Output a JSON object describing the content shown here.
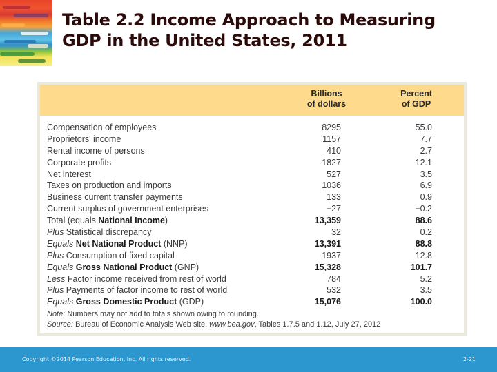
{
  "slide": {
    "title_line1": "Table 2.2  Income Approach to Measuring",
    "title_line2": "GDP in the United States, 2011"
  },
  "table": {
    "header": {
      "col1_line1": "Billions",
      "col1_line2": "of dollars",
      "col2_line1": "Percent",
      "col2_line2": "of GDP"
    },
    "rows": [
      {
        "prefix": "",
        "bold": "",
        "text": "Compensation of employees",
        "suffix": "",
        "billions": "8295",
        "percent": "55.0",
        "is_total": false
      },
      {
        "prefix": "",
        "bold": "",
        "text": "Proprietors' income",
        "suffix": "",
        "billions": "1157",
        "percent": "7.7",
        "is_total": false
      },
      {
        "prefix": "",
        "bold": "",
        "text": "Rental income of persons",
        "suffix": "",
        "billions": "410",
        "percent": "2.7",
        "is_total": false
      },
      {
        "prefix": "",
        "bold": "",
        "text": "Corporate profits",
        "suffix": "",
        "billions": "1827",
        "percent": "12.1",
        "is_total": false
      },
      {
        "prefix": "",
        "bold": "",
        "text": "Net interest",
        "suffix": "",
        "billions": "527",
        "percent": "3.5",
        "is_total": false
      },
      {
        "prefix": "",
        "bold": "",
        "text": "Taxes on production and imports",
        "suffix": "",
        "billions": "1036",
        "percent": "6.9",
        "is_total": false
      },
      {
        "prefix": "",
        "bold": "",
        "text": "Business current transfer payments",
        "suffix": "",
        "billions": "133",
        "percent": "0.9",
        "is_total": false
      },
      {
        "prefix": "",
        "bold": "",
        "text": "Current surplus of government enterprises",
        "suffix": "",
        "billions": "−27",
        "percent": "−0.2",
        "is_total": false
      },
      {
        "prefix": "",
        "text": "Total (equals ",
        "bold": "National Income",
        "suffix": ")",
        "billions": "13,359",
        "percent": "88.6",
        "is_total": true
      },
      {
        "prefix": "Plus",
        "text": " Statistical discrepancy",
        "bold": "",
        "suffix": "",
        "billions": "32",
        "percent": "0.2",
        "is_total": false
      },
      {
        "prefix": "Equals",
        "text": " ",
        "bold": "Net National Product",
        "suffix": " (NNP)",
        "billions": "13,391",
        "percent": "88.8",
        "is_total": true
      },
      {
        "prefix": "Plus",
        "text": " Consumption of fixed capital",
        "bold": "",
        "suffix": "",
        "billions": "1937",
        "percent": "12.8",
        "is_total": false
      },
      {
        "prefix": "Equals",
        "text": " ",
        "bold": "Gross National Product",
        "suffix": " (GNP)",
        "billions": "15,328",
        "percent": "101.7",
        "is_total": true
      },
      {
        "prefix": "Less",
        "text": " Factor income received from rest of world",
        "bold": "",
        "suffix": "",
        "billions": "784",
        "percent": "5.2",
        "is_total": false
      },
      {
        "prefix": "Plus",
        "text": " Payments of factor income to rest of world",
        "bold": "",
        "suffix": "",
        "billions": "532",
        "percent": "3.5",
        "is_total": false
      },
      {
        "prefix": "Equals",
        "text": " ",
        "bold": "Gross Domestic Product",
        "suffix": " (GDP)",
        "billions": "15,076",
        "percent": "100.0",
        "is_total": true
      }
    ],
    "note_label": "Note",
    "note_text": ": Numbers may not add to totals shown owing to rounding.",
    "source_label": "Source:",
    "source_text_1": " Bureau of Economic Analysis Web site, ",
    "source_url": "www.bea.gov",
    "source_text_2": ", Tables 1.7.5 and 1.12, July 27, 2012"
  },
  "footer": {
    "copyright": "Copyright ©2014 Pearson Education, Inc. All rights reserved.",
    "page_number": "2-21"
  },
  "colors": {
    "header_fill": "#fdda8c",
    "frame": "#ebe9dc",
    "footer_bar": "#2b97ce",
    "title_text": "#2b0a0a"
  }
}
